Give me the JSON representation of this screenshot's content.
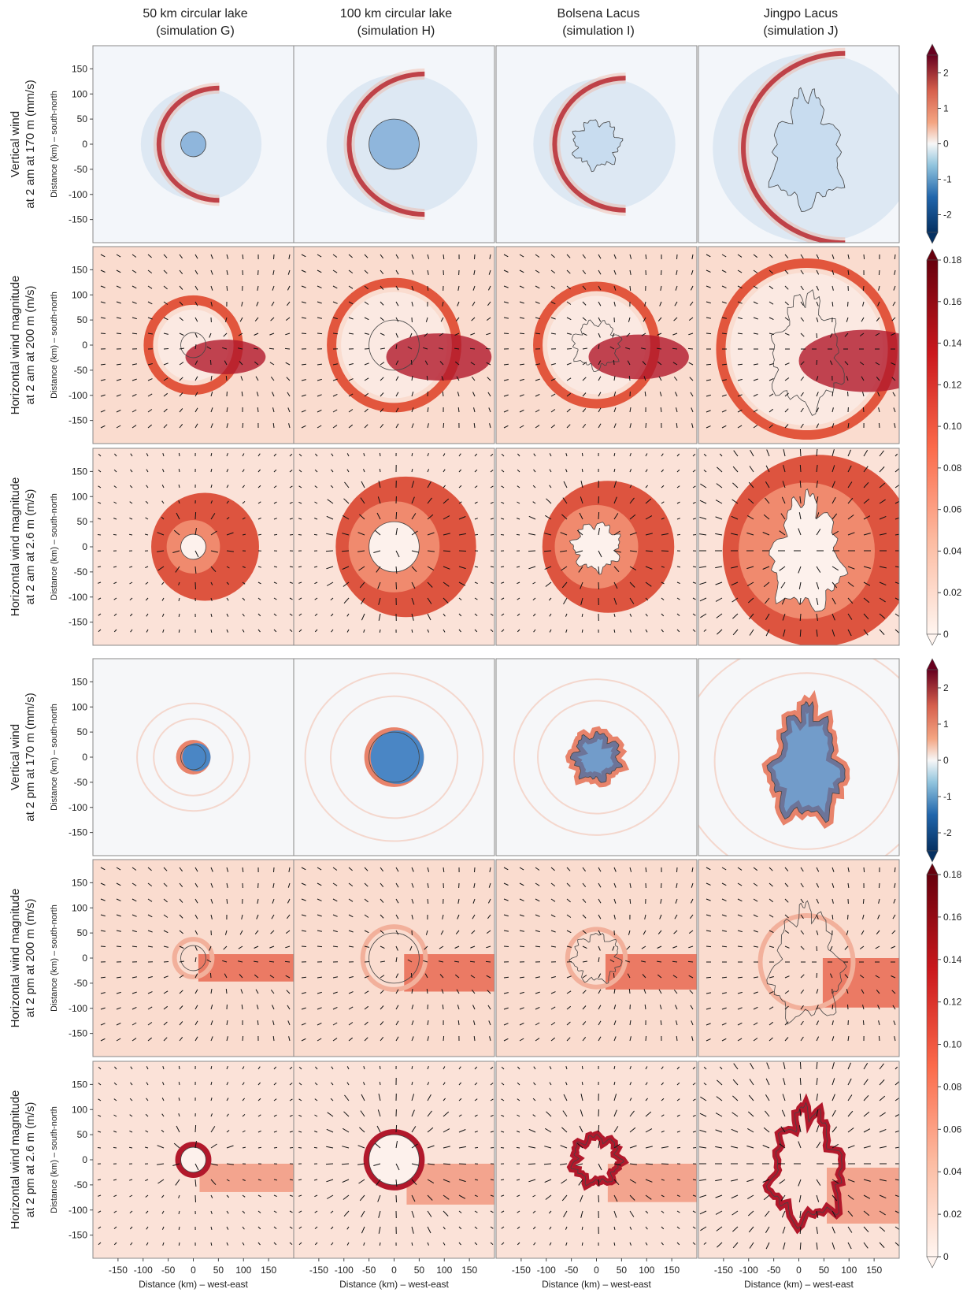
{
  "columns": [
    {
      "title": "50 km circular lake",
      "subtitle": "(simulation G)"
    },
    {
      "title": "100 km circular lake",
      "subtitle": "(simulation H)"
    },
    {
      "title": "Bolsena Lacus",
      "subtitle": "(simulation I)"
    },
    {
      "title": "Jingpo Lacus",
      "subtitle": "(simulation J)"
    }
  ],
  "rows": [
    {
      "label1": "Vertical wind",
      "label2": "at 2 am at 170 m (mm/s)",
      "field": "vertical",
      "time": "2 am"
    },
    {
      "label1": "Horizontal wind magnitude",
      "label2": "at 2 am at 200 m (m/s)",
      "field": "horizontal",
      "time": "2 am"
    },
    {
      "label1": "Horizontal wind magnitude",
      "label2": "at 2 am at 2.6 m (m/s)",
      "field": "horizontal",
      "time": "2 am"
    },
    {
      "label1": "Vertical wind",
      "label2": "at 2 pm at 170 m (mm/s)",
      "field": "vertical",
      "time": "2 pm"
    },
    {
      "label1": "Horizontal wind magnitude",
      "label2": "at 2 pm at 200 m (m/s)",
      "field": "horizontal",
      "time": "2 pm"
    },
    {
      "label1": "Horizontal wind magnitude",
      "label2": "at 2 pm at 2.6 m (m/s)",
      "field": "horizontal",
      "time": "2 pm"
    }
  ],
  "chart_data": {
    "type": "heatmap",
    "xlabel": "Distance (km) – west-east",
    "ylabel": "Distance (km) – south-north",
    "xticks": [
      -150,
      -100,
      -50,
      0,
      50,
      100,
      150
    ],
    "yticks": [
      150,
      100,
      50,
      0,
      -50,
      -100,
      -150
    ],
    "xlim": [
      -200,
      200
    ],
    "ylim": [
      -200,
      200
    ],
    "colorbars": [
      {
        "name": "vertical-top",
        "field": "vertical",
        "range": [
          -2.5,
          2.5
        ],
        "ticks": [
          2,
          1,
          0,
          -1,
          -2
        ],
        "colormap": "RdBu_r"
      },
      {
        "name": "horizontal-top",
        "field": "horizontal",
        "range": [
          0,
          0.18
        ],
        "ticks": [
          0.18,
          0.16,
          0.14,
          0.12,
          0.1,
          0.08,
          0.06,
          0.04,
          0.02,
          0
        ],
        "colormap": "Reds"
      },
      {
        "name": "vertical-bottom",
        "field": "vertical",
        "range": [
          -2.5,
          2.5
        ],
        "ticks": [
          2,
          1,
          0,
          -1,
          -2
        ],
        "colormap": "RdBu_r"
      },
      {
        "name": "horizontal-bottom",
        "field": "horizontal",
        "range": [
          0,
          0.18
        ],
        "ticks": [
          0.18,
          0.16,
          0.14,
          0.12,
          0.1,
          0.08,
          0.06,
          0.04,
          0.02,
          0
        ],
        "colormap": "Reds"
      }
    ],
    "lake_radius_km": [
      25,
      50,
      45,
      80
    ]
  },
  "colors": {
    "blue_strong": "#2b6cb0",
    "blue_light": "#d8e6f4",
    "red_strong": "#b2182b",
    "red_mid": "#e34a33",
    "background": "#f7f4f2",
    "arrow": "#111111"
  }
}
